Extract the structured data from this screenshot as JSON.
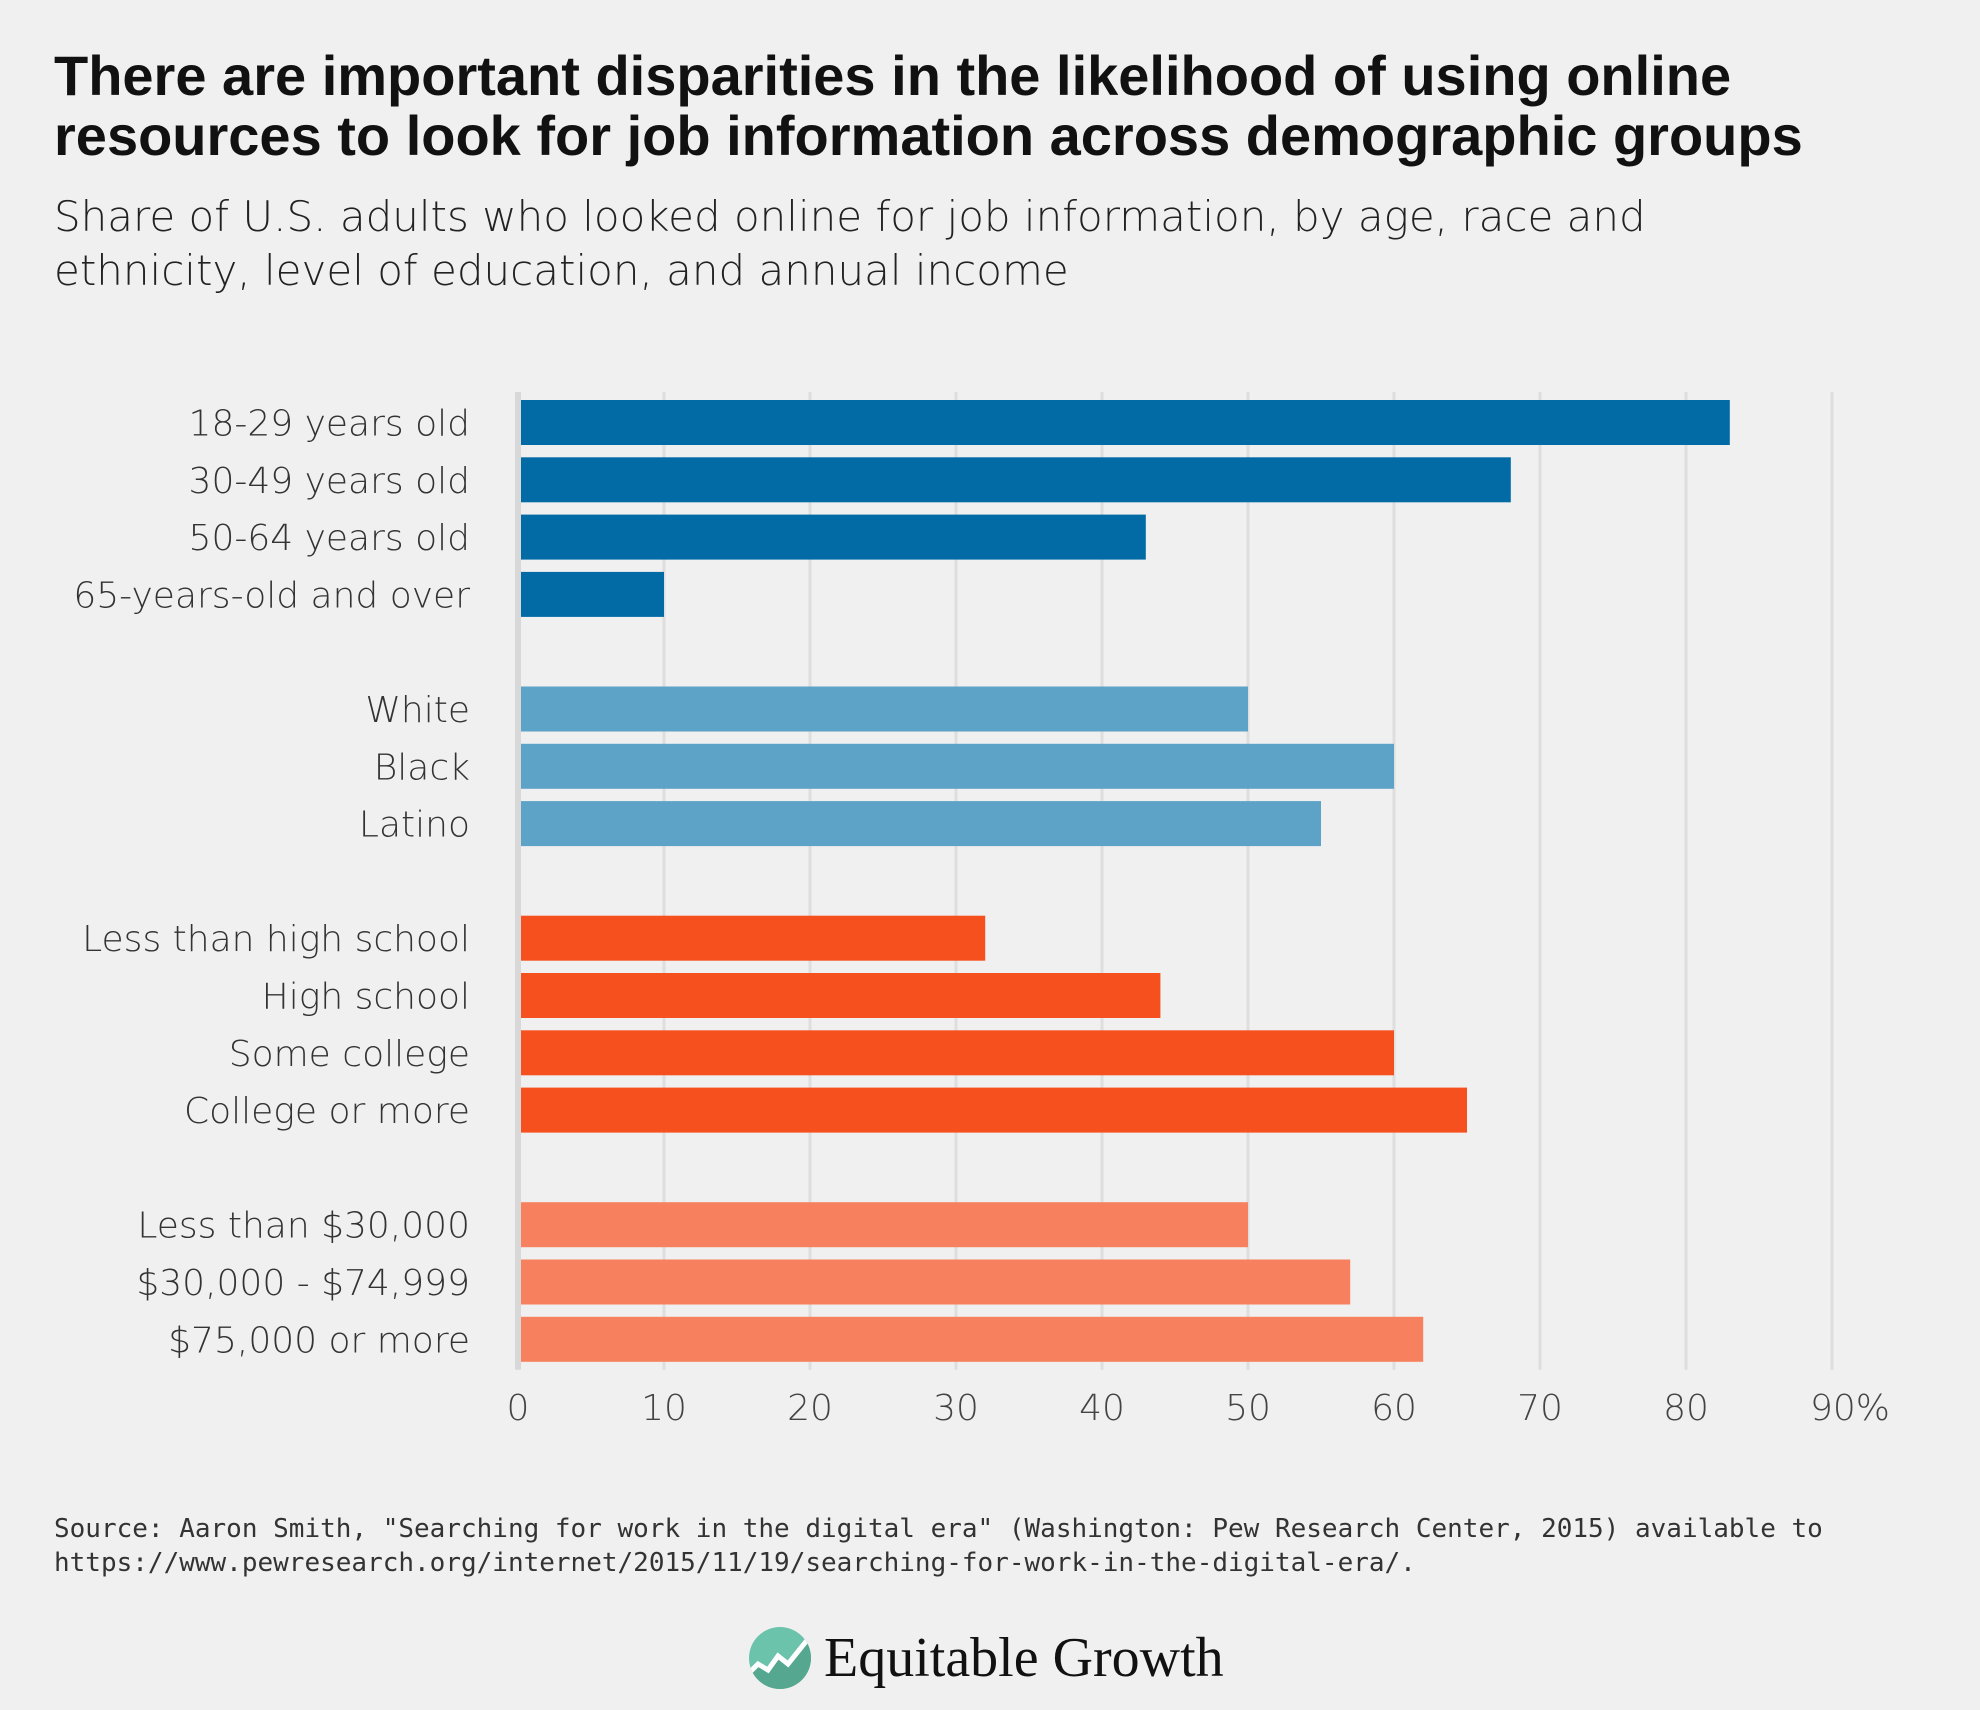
{
  "title": "There are important disparities in the likelihood of using online resources to look for job information across demographic groups",
  "subtitle": "Share of U.S. adults who looked online for job information, by age, race and ethnicity, level of education, and annual income",
  "source": "Source: Aaron Smith, \"Searching for work in the digital era\" (Washington: Pew Research Center, 2015) available to https://www.pewresearch.org/internet/2015/11/19/searching-for-work-in-the-digital-era/.",
  "logo": {
    "text": "Equitable Growth",
    "icon": "rising-line-circle-icon",
    "color": "#6cc3ac"
  },
  "chart_data": {
    "type": "bar",
    "orientation": "horizontal",
    "xlim": [
      0,
      90
    ],
    "ticks": [
      0,
      10,
      20,
      30,
      40,
      50,
      60,
      70,
      80,
      90
    ],
    "tick_labels": [
      "0",
      "10",
      "20",
      "30",
      "40",
      "50",
      "60",
      "70",
      "80",
      "90%"
    ],
    "grid": true,
    "groups": [
      {
        "color": "#026ba6",
        "categories": [
          "18-29 years old",
          "30-49 years old",
          "50-64 years old",
          "65-years-old and over"
        ],
        "values": [
          83,
          68,
          43,
          10
        ]
      },
      {
        "color": "#5da2c7",
        "categories": [
          "White",
          "Black",
          "Latino"
        ],
        "values": [
          50,
          60,
          55
        ]
      },
      {
        "color": "#f5501e",
        "categories": [
          "Less than high school",
          "High school",
          "Some college",
          "College or more"
        ],
        "values": [
          32,
          44,
          60,
          65
        ]
      },
      {
        "color": "#f7815e",
        "categories": [
          "Less than $30,000",
          "$30,000 - $74,999",
          "$75,000 or more"
        ],
        "values": [
          50,
          57,
          62
        ]
      }
    ]
  }
}
